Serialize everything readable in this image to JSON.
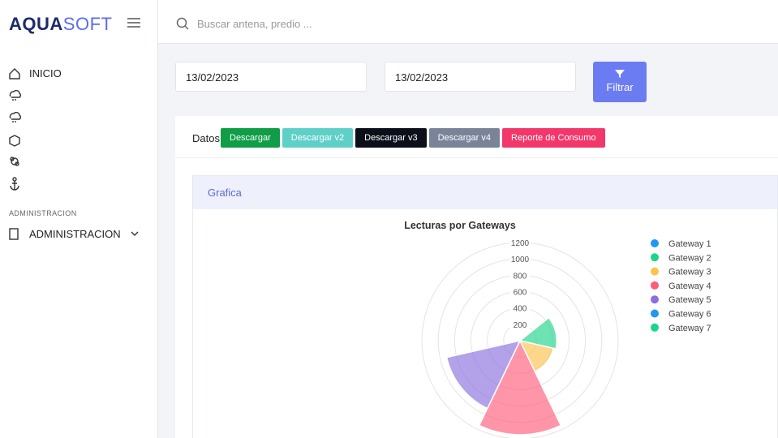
{
  "header": {
    "brand_bold": "AQUA",
    "brand_light": "SOFT",
    "search_placeholder": "Buscar antena, predio ..."
  },
  "sidebar": {
    "home": "INICIO",
    "section": "ADMINISTRACION",
    "admin": "ADMINISTRACION"
  },
  "filters": {
    "date_from": "13/02/2023",
    "date_to": "13/02/2023",
    "button": "Filtrar"
  },
  "toolbar": {
    "label": "Datos",
    "buttons": [
      {
        "text": "Descargar",
        "color": "#0f9d48"
      },
      {
        "text": "Descargar v2",
        "color": "#5fd0c8"
      },
      {
        "text": "Descargar v3",
        "color": "#0b0f19"
      },
      {
        "text": "Descargar v4",
        "color": "#7a8499"
      },
      {
        "text": "Reporte de Consumo",
        "color": "#f2386b"
      }
    ]
  },
  "panel": {
    "title": "Grafica"
  },
  "chart_data": {
    "type": "polarArea",
    "title": "Lecturas por Gateways",
    "categories": [
      "Gateway 1",
      "Gateway 2",
      "Gateway 3",
      "Gateway 4",
      "Gateway 5",
      "Gateway 6",
      "Gateway 7"
    ],
    "values": [
      30,
      450,
      420,
      1150,
      920,
      20,
      10
    ],
    "colors": [
      "#2196f3",
      "#1ed48a",
      "#ffc24d",
      "#ff5c7a",
      "#8a6fdf",
      "#2196f3",
      "#1ed48a"
    ],
    "rlim": [
      0,
      1200
    ],
    "rticks": [
      200,
      400,
      600,
      800,
      1000,
      1200
    ]
  }
}
